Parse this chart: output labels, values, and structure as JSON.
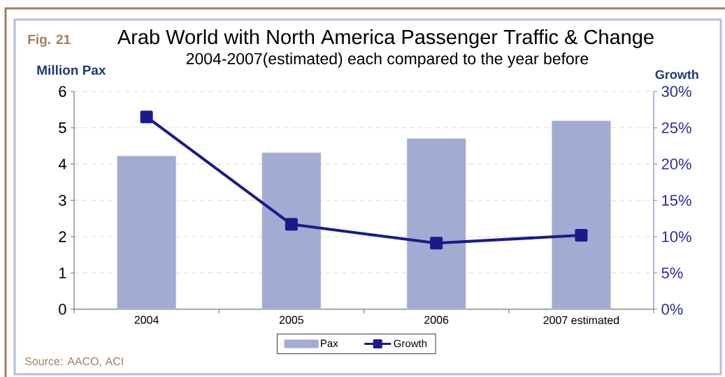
{
  "chart_data": {
    "type": "bar",
    "title": "Arab World with North America Passenger Traffic & Change",
    "subtitle": "2004-2007(estimated) each compared to the year before",
    "ylabel": "Million Pax",
    "y2label": "Growth",
    "categories": [
      "2004",
      "2005",
      "2006",
      "2007 estimated"
    ],
    "series": [
      {
        "name": "Pax",
        "color": "#a2abd1",
        "values": [
          4.22,
          4.31,
          4.7,
          5.19
        ]
      },
      {
        "name": "Growth",
        "type": "line",
        "axis": "y2",
        "color": "#1a1a8c",
        "values": [
          26.5,
          11.7,
          9.1,
          10.2
        ]
      }
    ],
    "ylim": [
      0,
      6
    ],
    "yticks": [
      0,
      1,
      2,
      3,
      4,
      5,
      6
    ],
    "y2lim": [
      0,
      30
    ],
    "y2ticks": [
      {
        "value": 0,
        "label": "0%"
      },
      {
        "value": 5,
        "label": "5%"
      },
      {
        "value": 10,
        "label": "10%"
      },
      {
        "value": 15,
        "label": "15%"
      },
      {
        "value": 20,
        "label": "20%"
      },
      {
        "value": 25,
        "label": "25%"
      },
      {
        "value": 30,
        "label": "30%"
      }
    ],
    "grid": "y",
    "legend": "bottom",
    "marker": "square",
    "annotations": [
      "Fig. 21",
      "Source: AACO, ACI"
    ]
  }
}
